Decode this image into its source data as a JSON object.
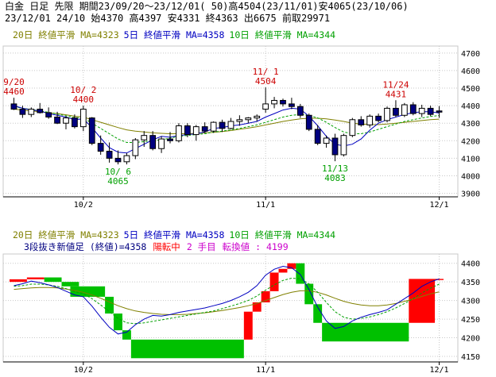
{
  "header": {
    "line1": "白金 日足 先限 期間23/09/20～23/12/01( 50)高4504(23/11/01)安4065(23/10/06)",
    "line2": "23/12/01 24/10 始4370 高4397 安4331 終4363 出6675 前取29971"
  },
  "colors": {
    "ma20": "#808000",
    "ma5": "#0000c0",
    "ma10": "#00a000",
    "up": "#ffffff",
    "down": "#000080",
    "rise": "#ff0000",
    "fall": "#00c000",
    "grid": "#c8c8c8",
    "axis": "#000000"
  },
  "chart_data": [
    {
      "type": "candlestick",
      "legend": {
        "ma20": "20日 終値平滑 MA=4323",
        "ma5": "5日 終値平滑 MA=4358",
        "ma10": "10日 終値平滑 MA=4344"
      },
      "y_ticks": [
        4700,
        4600,
        4500,
        4400,
        4300,
        4200,
        4100,
        4000,
        3900
      ],
      "ylim": [
        3880,
        4740
      ],
      "x_ticks": [
        {
          "label": "10/2",
          "index": 8
        },
        {
          "label": "11/1",
          "index": 29
        },
        {
          "label": "12/1",
          "index": 49
        }
      ],
      "candles": [
        [
          4410,
          4445,
          4375,
          4380
        ],
        [
          4380,
          4400,
          4330,
          4350
        ],
        [
          4350,
          4390,
          4335,
          4380
        ],
        [
          4380,
          4415,
          4355,
          4360
        ],
        [
          4360,
          4390,
          4325,
          4335
        ],
        [
          4335,
          4365,
          4295,
          4300
        ],
        [
          4300,
          4340,
          4265,
          4330
        ],
        [
          4330,
          4350,
          4270,
          4280
        ],
        [
          4280,
          4400,
          4255,
          4380
        ],
        [
          4330,
          4335,
          4175,
          4185
        ],
        [
          4185,
          4230,
          4120,
          4140
        ],
        [
          4140,
          4190,
          4075,
          4100
        ],
        [
          4100,
          4145,
          4065,
          4080
        ],
        [
          4080,
          4130,
          4065,
          4115
        ],
        [
          4115,
          4215,
          4095,
          4205
        ],
        [
          4205,
          4255,
          4165,
          4230
        ],
        [
          4230,
          4255,
          4145,
          4155
        ],
        [
          4155,
          4225,
          4130,
          4210
        ],
        [
          4210,
          4250,
          4185,
          4200
        ],
        [
          4200,
          4300,
          4190,
          4285
        ],
        [
          4285,
          4300,
          4220,
          4235
        ],
        [
          4235,
          4290,
          4200,
          4280
        ],
        [
          4280,
          4305,
          4245,
          4255
        ],
        [
          4255,
          4310,
          4245,
          4305
        ],
        [
          4305,
          4320,
          4250,
          4270
        ],
        [
          4270,
          4330,
          4265,
          4310
        ],
        [
          4310,
          4345,
          4285,
          4320
        ],
        [
          4320,
          4335,
          4300,
          4330
        ],
        [
          4330,
          4350,
          4310,
          4340
        ],
        [
          4380,
          4504,
          4360,
          4410
        ],
        [
          4410,
          4450,
          4385,
          4430
        ],
        [
          4430,
          4440,
          4395,
          4410
        ],
        [
          4410,
          4445,
          4380,
          4395
        ],
        [
          4395,
          4410,
          4330,
          4345
        ],
        [
          4345,
          4355,
          4255,
          4265
        ],
        [
          4265,
          4290,
          4175,
          4185
        ],
        [
          4185,
          4230,
          4160,
          4215
        ],
        [
          4215,
          4240,
          4083,
          4120
        ],
        [
          4120,
          4240,
          4110,
          4230
        ],
        [
          4230,
          4330,
          4220,
          4320
        ],
        [
          4320,
          4340,
          4280,
          4290
        ],
        [
          4290,
          4350,
          4275,
          4340
        ],
        [
          4340,
          4355,
          4305,
          4315
        ],
        [
          4315,
          4395,
          4305,
          4385
        ],
        [
          4385,
          4431,
          4335,
          4345
        ],
        [
          4345,
          4415,
          4335,
          4405
        ],
        [
          4405,
          4420,
          4345,
          4355
        ],
        [
          4355,
          4405,
          4335,
          4385
        ],
        [
          4385,
          4400,
          4340,
          4350
        ],
        [
          4370,
          4397,
          4331,
          4363
        ]
      ],
      "ma5": [
        4400,
        4385,
        4375,
        4370,
        4355,
        4345,
        4335,
        4320,
        4325,
        4275,
        4215,
        4160,
        4135,
        4130,
        4155,
        4180,
        4205,
        4225,
        4220,
        4230,
        4235,
        4240,
        4250,
        4270,
        4275,
        4285,
        4290,
        4300,
        4310,
        4335,
        4355,
        4375,
        4385,
        4380,
        4340,
        4285,
        4225,
        4180,
        4170,
        4180,
        4210,
        4260,
        4300,
        4320,
        4335,
        4350,
        4360,
        4365,
        4365,
        4358
      ],
      "ma10": [
        4395,
        4385,
        4378,
        4370,
        4362,
        4352,
        4342,
        4332,
        4330,
        4300,
        4270,
        4240,
        4210,
        4190,
        4190,
        4195,
        4200,
        4205,
        4215,
        4225,
        4230,
        4235,
        4240,
        4250,
        4255,
        4262,
        4270,
        4280,
        4290,
        4305,
        4320,
        4335,
        4345,
        4350,
        4345,
        4330,
        4305,
        4275,
        4250,
        4240,
        4240,
        4250,
        4265,
        4280,
        4295,
        4310,
        4320,
        4330,
        4338,
        4344
      ],
      "ma20": [
        4380,
        4375,
        4370,
        4365,
        4360,
        4355,
        4348,
        4340,
        4335,
        4320,
        4305,
        4290,
        4275,
        4262,
        4255,
        4250,
        4245,
        4242,
        4240,
        4240,
        4240,
        4242,
        4245,
        4248,
        4252,
        4258,
        4265,
        4272,
        4280,
        4290,
        4300,
        4310,
        4318,
        4325,
        4328,
        4328,
        4325,
        4318,
        4310,
        4300,
        4295,
        4292,
        4292,
        4295,
        4300,
        4305,
        4310,
        4315,
        4320,
        4323
      ],
      "annotations": [
        {
          "label": "9/20",
          "value": "4460",
          "index": 0,
          "at": "high",
          "color": "#cc0000"
        },
        {
          "label": "10/ 2",
          "value": "4400",
          "index": 8,
          "at": "high",
          "color": "#cc0000"
        },
        {
          "label": "10/ 6",
          "value": "4065",
          "index": 12,
          "at": "low",
          "color": "#00a000"
        },
        {
          "label": "11/ 1",
          "value": "4504",
          "index": 29,
          "at": "high",
          "color": "#cc0000"
        },
        {
          "label": "11/13",
          "value": "4083",
          "index": 37,
          "at": "low",
          "color": "#00a000"
        },
        {
          "label": "11/24",
          "value": "4431",
          "index": 44,
          "at": "high",
          "color": "#cc0000"
        }
      ]
    },
    {
      "type": "three-line-break",
      "legend": {
        "ma20": "20日 終値平滑 MA=4323",
        "ma5": "5日 終値平滑 MA=4358",
        "ma10": "10日 終値平滑 MA=4344"
      },
      "status": {
        "prefix": "3段抜き新値足 (終値)=4358",
        "trend": "陽転中",
        "step": "2 手目",
        "reversal": "転換値 : 4199"
      },
      "y_ticks": [
        4400,
        4350,
        4300,
        4250,
        4200,
        4150
      ],
      "ylim": [
        4135,
        4425
      ],
      "x_ticks": [
        {
          "label": "10/2",
          "index": 8
        },
        {
          "label": "11/1",
          "index": 29
        },
        {
          "label": "12/1",
          "index": 49
        }
      ],
      "bricks": [
        {
          "start": 0,
          "end": 2,
          "low": 4350,
          "high": 4357,
          "dir": "up"
        },
        {
          "start": 2,
          "end": 4,
          "low": 4357,
          "high": 4362,
          "dir": "up"
        },
        {
          "start": 4,
          "end": 6,
          "low": 4350,
          "high": 4362,
          "dir": "down"
        },
        {
          "start": 6,
          "end": 8,
          "low": 4338,
          "high": 4350,
          "dir": "down"
        },
        {
          "start": 7,
          "end": 11,
          "low": 4310,
          "high": 4338,
          "dir": "down"
        },
        {
          "start": 11,
          "end": 12,
          "low": 4265,
          "high": 4310,
          "dir": "down"
        },
        {
          "start": 12,
          "end": 13,
          "low": 4220,
          "high": 4265,
          "dir": "down"
        },
        {
          "start": 13,
          "end": 14,
          "low": 4195,
          "high": 4220,
          "dir": "down"
        },
        {
          "start": 14,
          "end": 27,
          "low": 4145,
          "high": 4195,
          "dir": "down"
        },
        {
          "start": 27,
          "end": 28,
          "low": 4195,
          "high": 4270,
          "dir": "up"
        },
        {
          "start": 28,
          "end": 29,
          "low": 4270,
          "high": 4295,
          "dir": "up"
        },
        {
          "start": 29,
          "end": 30,
          "low": 4295,
          "high": 4325,
          "dir": "up"
        },
        {
          "start": 30,
          "end": 31,
          "low": 4325,
          "high": 4375,
          "dir": "up"
        },
        {
          "start": 31,
          "end": 32,
          "low": 4375,
          "high": 4385,
          "dir": "up"
        },
        {
          "start": 32,
          "end": 33,
          "low": 4385,
          "high": 4400,
          "dir": "up"
        },
        {
          "start": 33,
          "end": 34,
          "low": 4345,
          "high": 4400,
          "dir": "down"
        },
        {
          "start": 34,
          "end": 35,
          "low": 4290,
          "high": 4345,
          "dir": "down"
        },
        {
          "start": 35,
          "end": 36,
          "low": 4240,
          "high": 4290,
          "dir": "down"
        },
        {
          "start": 36,
          "end": 46,
          "low": 4190,
          "high": 4240,
          "dir": "down"
        },
        {
          "start": 46,
          "end": 49,
          "low": 4240,
          "high": 4358,
          "dir": "up"
        },
        {
          "start": 49,
          "end": 50,
          "low": 4355,
          "high": 4358,
          "dir": "up"
        }
      ],
      "ma5": [
        4340,
        4345,
        4352,
        4348,
        4342,
        4335,
        4325,
        4315,
        4310,
        4285,
        4255,
        4228,
        4210,
        4215,
        4235,
        4250,
        4260,
        4258,
        4262,
        4268,
        4272,
        4276,
        4280,
        4286,
        4292,
        4300,
        4310,
        4322,
        4340,
        4368,
        4384,
        4392,
        4388,
        4370,
        4330,
        4282,
        4245,
        4225,
        4230,
        4245,
        4255,
        4262,
        4268,
        4275,
        4290,
        4305,
        4320,
        4338,
        4350,
        4358
      ],
      "ma10": [
        4338,
        4340,
        4344,
        4344,
        4342,
        4338,
        4332,
        4324,
        4318,
        4305,
        4288,
        4270,
        4252,
        4240,
        4238,
        4240,
        4244,
        4248,
        4252,
        4256,
        4260,
        4264,
        4268,
        4272,
        4278,
        4285,
        4292,
        4300,
        4312,
        4328,
        4342,
        4354,
        4360,
        4358,
        4345,
        4322,
        4295,
        4270,
        4255,
        4250,
        4252,
        4256,
        4262,
        4270,
        4280,
        4292,
        4305,
        4320,
        4333,
        4344
      ],
      "ma20": [
        4330,
        4332,
        4334,
        4335,
        4335,
        4334,
        4331,
        4327,
        4322,
        4315,
        4306,
        4296,
        4286,
        4278,
        4272,
        4268,
        4265,
        4263,
        4262,
        4262,
        4263,
        4265,
        4267,
        4270,
        4273,
        4277,
        4281,
        4286,
        4292,
        4300,
        4308,
        4316,
        4322,
        4326,
        4326,
        4322,
        4315,
        4306,
        4298,
        4292,
        4288,
        4286,
        4286,
        4288,
        4292,
        4298,
        4304,
        4311,
        4318,
        4323
      ]
    }
  ]
}
